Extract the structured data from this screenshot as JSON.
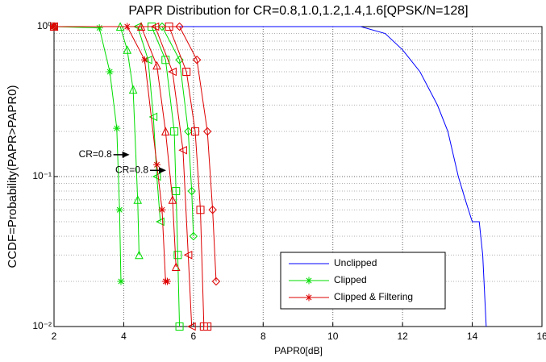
{
  "chart_data": {
    "type": "line",
    "title": "PAPR Distribution for CR=0.8,1.0,1.2,1.4,1.6[QPSK/N=128]",
    "xlabel": "PAPR0[dB]",
    "ylabel": "CCDF=Probability(PAPR>PAPR0)",
    "xlim": [
      2,
      16
    ],
    "xticks": [
      2,
      4,
      6,
      8,
      10,
      12,
      14,
      16
    ],
    "ylim": [
      0.01,
      1
    ],
    "yscale": "log",
    "yticks": [
      {
        "value": 1,
        "label": "10⁰"
      },
      {
        "value": 0.1,
        "label": "10⁻¹"
      },
      {
        "value": 0.01,
        "label": "10⁻²"
      }
    ],
    "grid": true,
    "legend": "lower right",
    "series": [
      {
        "name": "Unclipped",
        "color": "#0000ff",
        "curves": [
          {
            "marker": "none",
            "x": [
              2,
              10.8,
              11.5,
              12,
              12.5,
              13,
              13.3,
              13.6,
              13.8,
              14,
              14.2,
              14.3,
              14.4
            ],
            "values": [
              1,
              1,
              0.9,
              0.7,
              0.5,
              0.3,
              0.2,
              0.1,
              0.07,
              0.05,
              0.05,
              0.03,
              0.01
            ]
          }
        ]
      },
      {
        "name": "Clipped",
        "color": "#00dd00",
        "curves": [
          {
            "marker": "star",
            "x": [
              2,
              3.3,
              3.6,
              3.8,
              3.88,
              3.92
            ],
            "values": [
              1,
              0.98,
              0.5,
              0.21,
              0.06,
              0.02
            ]
          },
          {
            "marker": "triangle",
            "x": [
              2,
              3.9,
              4.1,
              4.27,
              4.4,
              4.44
            ],
            "values": [
              1,
              1,
              0.7,
              0.38,
              0.07,
              0.03
            ]
          },
          {
            "marker": "triangle-left",
            "x": [
              2,
              4.4,
              4.7,
              4.85,
              4.95,
              5.05
            ],
            "values": [
              1,
              1,
              0.6,
              0.25,
              0.1,
              0.05
            ]
          },
          {
            "marker": "square",
            "x": [
              2,
              4.8,
              5.2,
              5.45,
              5.5,
              5.55,
              5.6
            ],
            "values": [
              1,
              1,
              0.6,
              0.2,
              0.08,
              0.03,
              0.01
            ]
          },
          {
            "marker": "diamond",
            "x": [
              2,
              5.1,
              5.6,
              5.85,
              5.95,
              6.0
            ],
            "values": [
              1,
              1,
              0.6,
              0.2,
              0.08,
              0.04
            ]
          }
        ]
      },
      {
        "name": "Clipped & Filtering",
        "color": "#dd0000",
        "curves": [
          {
            "marker": "star",
            "x": [
              2,
              4.1,
              4.6,
              4.95,
              5.1,
              5.2,
              5.25
            ],
            "values": [
              1,
              1,
              0.6,
              0.12,
              0.06,
              0.02,
              0.02
            ]
          },
          {
            "marker": "triangle",
            "x": [
              2,
              4.5,
              4.95,
              5.2,
              5.4,
              5.5
            ],
            "values": [
              1,
              1,
              0.55,
              0.2,
              0.07,
              0.025
            ]
          },
          {
            "marker": "triangle-left",
            "x": [
              2,
              4.9,
              5.4,
              5.7,
              5.85,
              5.95
            ],
            "values": [
              1,
              1,
              0.5,
              0.15,
              0.03,
              0.01
            ]
          },
          {
            "marker": "square",
            "x": [
              2,
              5.3,
              5.8,
              6.05,
              6.2,
              6.3,
              6.4
            ],
            "values": [
              1,
              1,
              0.5,
              0.2,
              0.06,
              0.01,
              0.01
            ]
          },
          {
            "marker": "diamond",
            "x": [
              2,
              5.6,
              6.1,
              6.4,
              6.55,
              6.65
            ],
            "values": [
              1,
              1,
              0.6,
              0.2,
              0.06,
              0.02
            ]
          }
        ]
      }
    ],
    "annotations": [
      {
        "text": "CR=0.8",
        "x": 3.75,
        "y": 0.14
      },
      {
        "text": "CR=0.8",
        "x": 4.8,
        "y": 0.11
      }
    ]
  }
}
